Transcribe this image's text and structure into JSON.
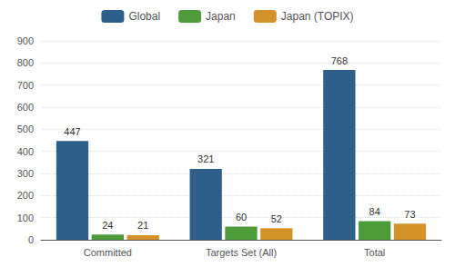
{
  "chart_data": {
    "type": "bar",
    "categories": [
      "Committed",
      "Targets Set (All)",
      "Total"
    ],
    "series": [
      {
        "name": "Global",
        "color": "#2E5F8A",
        "values": [
          447,
          321,
          768
        ]
      },
      {
        "name": "Japan",
        "color": "#4D9B3A",
        "values": [
          24,
          60,
          84
        ]
      },
      {
        "name": "Japan (TOPIX)",
        "color": "#D4922A",
        "values": [
          21,
          52,
          73
        ]
      }
    ],
    "ylim": [
      0,
      900
    ],
    "yticks": [
      0,
      100,
      200,
      300,
      400,
      500,
      600,
      700,
      800,
      900
    ],
    "grid": true,
    "legend": "top",
    "data_labels": true
  }
}
